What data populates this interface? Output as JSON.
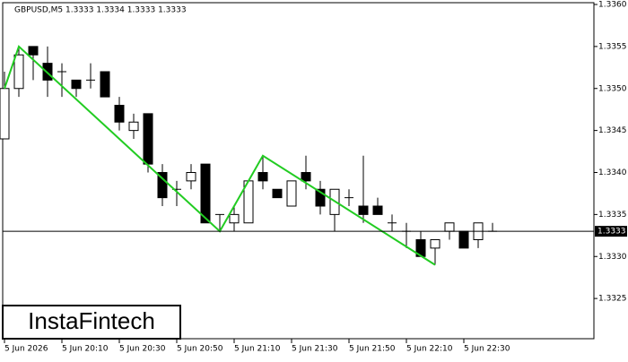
{
  "chart_data": {
    "type": "candlestick",
    "title": "GBPUSD,M5  1.3333 1.3334 1.3333 1.3333",
    "watermark": "InstaFintech",
    "categories": [
      "5 Jun 2026",
      null,
      null,
      null,
      "5 Jun 20:10",
      null,
      null,
      null,
      "5 Jun 20:30",
      null,
      null,
      null,
      "5 Jun 20:50",
      null,
      null,
      null,
      "5 Jun 21:10",
      null,
      null,
      null,
      "5 Jun 21:30",
      null,
      null,
      null,
      "5 Jun 21:50",
      null,
      null,
      null,
      "5 Jun 22:10",
      null,
      null,
      null,
      "5 Jun 22:30",
      null,
      null
    ],
    "open": [
      1.3344,
      1.335,
      1.3355,
      1.3353,
      1.3352,
      1.3351,
      1.3351,
      1.3352,
      1.3348,
      1.3345,
      1.3347,
      1.334,
      1.3338,
      1.3339,
      1.3341,
      1.3335,
      1.3334,
      1.3334,
      1.334,
      1.3338,
      1.3336,
      1.334,
      1.3338,
      1.3335,
      1.3337,
      1.3336,
      1.3336,
      1.3334,
      1.3333,
      1.3332,
      1.3331,
      1.3333,
      1.3333,
      1.3332,
      1.3333
    ],
    "high": [
      1.3352,
      1.3355,
      1.3355,
      1.3355,
      1.3353,
      1.3351,
      1.3353,
      1.3352,
      1.3349,
      1.3347,
      1.3347,
      1.3341,
      1.3339,
      1.3341,
      1.3341,
      1.3335,
      1.3336,
      1.3339,
      1.3342,
      1.3338,
      1.3339,
      1.3342,
      1.3339,
      1.3338,
      1.3338,
      1.3342,
      1.3337,
      1.3335,
      1.3334,
      1.3333,
      1.3332,
      1.3334,
      1.3333,
      1.3334,
      1.3334
    ],
    "low": [
      1.3344,
      1.3349,
      1.3351,
      1.3349,
      1.3349,
      1.3349,
      1.335,
      1.3349,
      1.3345,
      1.3344,
      1.334,
      1.3336,
      1.3336,
      1.3338,
      1.3334,
      1.3333,
      1.3333,
      1.3334,
      1.3338,
      1.3337,
      1.3336,
      1.3338,
      1.3335,
      1.3333,
      1.3336,
      1.3334,
      1.3335,
      1.3333,
      1.3331,
      1.333,
      1.3329,
      1.3332,
      1.3331,
      1.3331,
      1.3333
    ],
    "close": [
      1.335,
      1.3354,
      1.3354,
      1.3351,
      1.3352,
      1.335,
      1.3351,
      1.3349,
      1.3346,
      1.3346,
      1.3341,
      1.3337,
      1.3338,
      1.334,
      1.3334,
      1.3335,
      1.3335,
      1.3339,
      1.3339,
      1.3337,
      1.3339,
      1.3339,
      1.3336,
      1.3338,
      1.3337,
      1.3335,
      1.3335,
      1.3334,
      1.3333,
      1.333,
      1.3332,
      1.3334,
      1.3331,
      1.3334,
      1.3333
    ],
    "up_color": "#ffffff",
    "down_color": "#000000",
    "pattern": {
      "color": "#22cc22",
      "x": [
        0,
        1,
        15,
        18,
        30
      ],
      "values": [
        1.335,
        1.3355,
        1.3333,
        1.3342,
        1.3329
      ]
    },
    "current_price": 1.3333,
    "ylim": [
      1.332,
      1.336
    ],
    "yticks": [
      1.3325,
      {
        "value": 1.333,
        "label": "1.3330"
      },
      1.3335,
      {
        "value": 1.334,
        "label": "1.3340"
      },
      1.3345,
      {
        "value": 1.335,
        "label": "1.3350"
      },
      1.3355,
      {
        "value": 1.336,
        "label": "1.3360"
      }
    ]
  }
}
